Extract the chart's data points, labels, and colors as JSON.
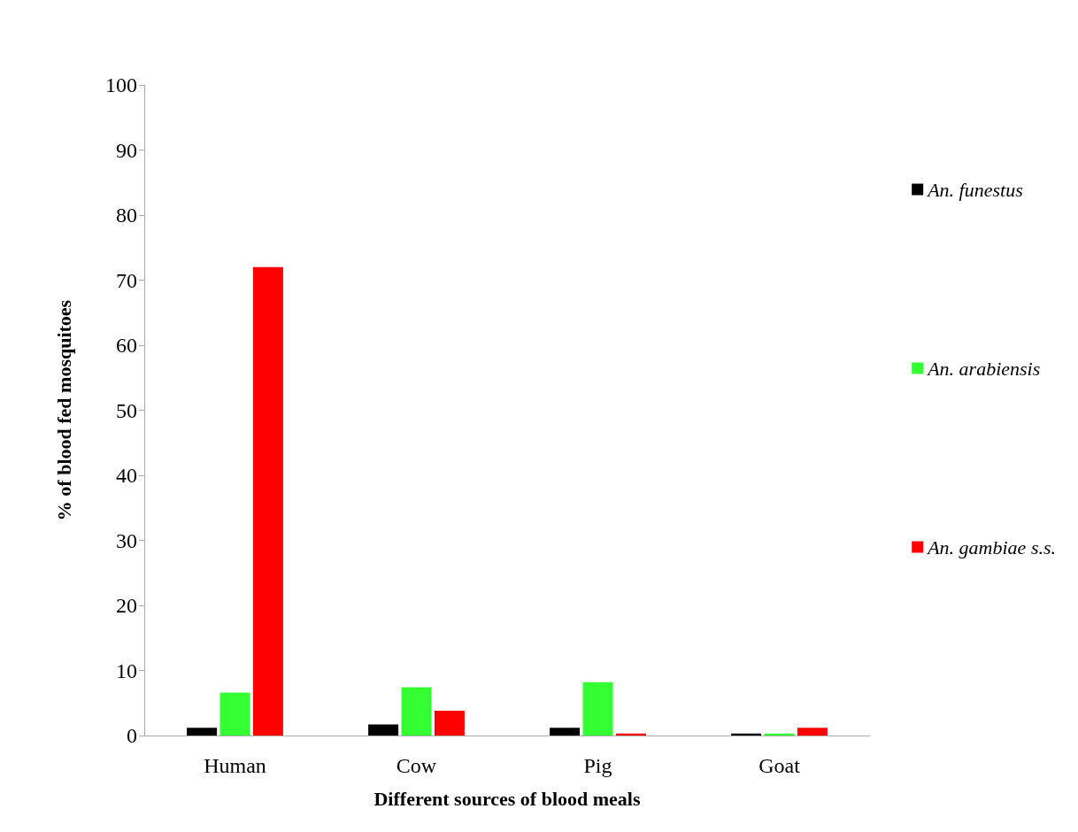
{
  "chart_data": {
    "type": "bar",
    "xlabel": "Different sources of blood meals",
    "ylabel": "% of blood fed mosquitoes",
    "categories": [
      "Human",
      "Cow",
      "Pig",
      "Goat"
    ],
    "series": [
      {
        "name": "An. funestus",
        "color": "#000000",
        "values": [
          1.2,
          1.7,
          1.2,
          0.3
        ]
      },
      {
        "name": "An. arabiensis",
        "color": "#33ff33",
        "values": [
          6.6,
          7.4,
          8.2,
          0.3
        ]
      },
      {
        "name": "An. gambiae s.s.",
        "color": "#ff0000",
        "values": [
          72,
          3.8,
          0.3,
          1.2
        ]
      }
    ],
    "ylim": [
      0,
      100
    ],
    "yticks": [
      0,
      10,
      20,
      30,
      40,
      50,
      60,
      70,
      80,
      90,
      100
    ],
    "grid": false,
    "legend": "right"
  }
}
